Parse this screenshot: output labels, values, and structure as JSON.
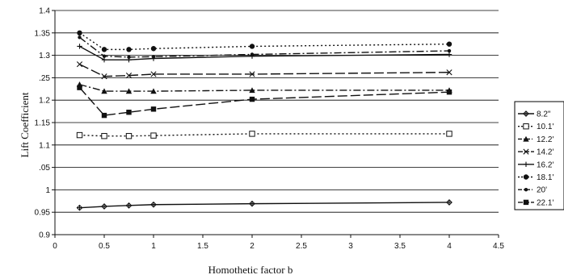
{
  "chart_data": {
    "type": "line",
    "title": "",
    "xlabel": "Homothetic factor b",
    "ylabel": "Lift Coefficient",
    "xlim": [
      0,
      4.5
    ],
    "ylim": [
      0.9,
      1.4
    ],
    "x_ticks": [
      "0",
      "0.5",
      "1",
      "1.5",
      "2",
      "2.5",
      "3",
      "3.5",
      "4",
      "4.5"
    ],
    "y_ticks": [
      "0.9",
      "0.95",
      "1",
      "1.05",
      "1.1",
      "1.15",
      "1.2",
      "1.25",
      "1.3",
      "1.35",
      "1.4"
    ],
    "y_tick_labels": [
      "0.9",
      "0.95",
      "1",
      ".05",
      "1.1",
      "1.15",
      "1.2",
      ".25",
      "1.3",
      "1.35",
      "1.4"
    ],
    "grid": "horizontal",
    "legend_position": "right",
    "x": [
      0.25,
      0.5,
      0.75,
      1,
      2,
      4
    ],
    "series": [
      {
        "name": "8.2\"",
        "marker": "diamond-cross",
        "dash": "solid",
        "values": [
          0.96,
          0.963,
          0.965,
          0.967,
          0.969,
          0.972
        ]
      },
      {
        "name": "10.1'",
        "marker": "square-open",
        "dash": "dotted",
        "values": [
          1.122,
          1.12,
          1.12,
          1.121,
          1.125,
          1.125
        ]
      },
      {
        "name": "12.2'",
        "marker": "triangle",
        "dash": "dashdot",
        "values": [
          1.235,
          1.22,
          1.22,
          1.22,
          1.222,
          1.222
        ]
      },
      {
        "name": "14.2'",
        "marker": "x",
        "dash": "longdash",
        "values": [
          1.28,
          1.253,
          1.255,
          1.258,
          1.258,
          1.262
        ]
      },
      {
        "name": "16.2'",
        "marker": "plus",
        "dash": "solid",
        "values": [
          1.32,
          1.29,
          1.29,
          1.293,
          1.298,
          1.302
        ]
      },
      {
        "name": "18.1'",
        "marker": "circle",
        "dash": "dotted",
        "values": [
          1.35,
          1.313,
          1.313,
          1.315,
          1.32,
          1.325
        ]
      },
      {
        "name": "20'",
        "marker": "dot",
        "dash": "dashdot",
        "values": [
          1.34,
          1.298,
          1.296,
          1.297,
          1.302,
          1.31
        ]
      },
      {
        "name": "22.1'",
        "marker": "square",
        "dash": "longdash",
        "values": [
          1.228,
          1.166,
          1.173,
          1.18,
          1.202,
          1.218
        ]
      }
    ]
  },
  "colors": {
    "line": "#111111",
    "grid": "#000000",
    "background": "#ffffff"
  }
}
